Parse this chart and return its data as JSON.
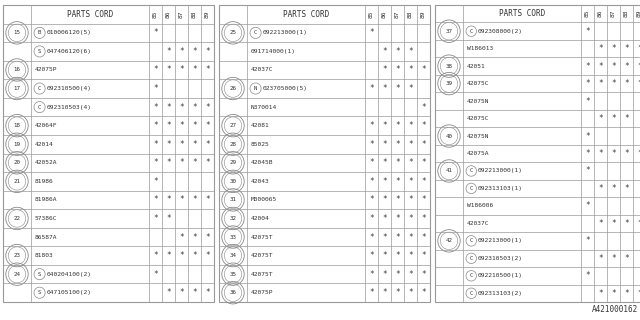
{
  "footer": "A421000162",
  "col_labels": [
    "85",
    "86",
    "87",
    "88",
    "89"
  ],
  "tables": [
    {
      "rows": [
        {
          "ref": null,
          "prefix": "",
          "part": "PARTS CORD",
          "stars": [
            null,
            null,
            null,
            null,
            null
          ],
          "header": true
        },
        {
          "ref": "15",
          "prefix": "B",
          "part": "010006120(5)",
          "stars": [
            "*",
            "",
            "",
            "",
            ""
          ]
        },
        {
          "ref": "15",
          "prefix": "S",
          "part": "047406120(6)",
          "stars": [
            "",
            "*",
            "*",
            "*",
            "*"
          ]
        },
        {
          "ref": "16",
          "prefix": "",
          "part": "42075P",
          "stars": [
            "*",
            "*",
            "*",
            "*",
            "*"
          ]
        },
        {
          "ref": "17",
          "prefix": "C",
          "part": "092310500(4)",
          "stars": [
            "*",
            "",
            "",
            "",
            ""
          ]
        },
        {
          "ref": "17",
          "prefix": "C",
          "part": "092310503(4)",
          "stars": [
            "*",
            "*",
            "*",
            "*",
            "*"
          ]
        },
        {
          "ref": "18",
          "prefix": "",
          "part": "42064F",
          "stars": [
            "*",
            "*",
            "*",
            "*",
            "*"
          ]
        },
        {
          "ref": "19",
          "prefix": "",
          "part": "42014",
          "stars": [
            "*",
            "*",
            "*",
            "*",
            "*"
          ]
        },
        {
          "ref": "20",
          "prefix": "",
          "part": "42052A",
          "stars": [
            "*",
            "*",
            "*",
            "*",
            "*"
          ]
        },
        {
          "ref": "21",
          "prefix": "",
          "part": "81986",
          "stars": [
            "*",
            "",
            "",
            "",
            ""
          ]
        },
        {
          "ref": "21",
          "prefix": "",
          "part": "81986A",
          "stars": [
            "*",
            "*",
            "*",
            "*",
            "*"
          ]
        },
        {
          "ref": "22",
          "prefix": "",
          "part": "57386C",
          "stars": [
            "*",
            "*",
            "",
            "",
            ""
          ]
        },
        {
          "ref": "22",
          "prefix": "",
          "part": "86587A",
          "stars": [
            "",
            "",
            "*",
            "*",
            "*"
          ]
        },
        {
          "ref": "23",
          "prefix": "",
          "part": "81803",
          "stars": [
            "*",
            "*",
            "*",
            "*",
            "*"
          ]
        },
        {
          "ref": "24",
          "prefix": "S",
          "part": "040204100(2)",
          "stars": [
            "*",
            "",
            "",
            "",
            ""
          ]
        },
        {
          "ref": "24",
          "prefix": "S",
          "part": "047105100(2)",
          "stars": [
            "",
            "*",
            "*",
            "*",
            "*"
          ]
        }
      ]
    },
    {
      "rows": [
        {
          "ref": null,
          "prefix": "",
          "part": "PARTS CORD",
          "stars": [
            null,
            null,
            null,
            null,
            null
          ],
          "header": true
        },
        {
          "ref": "25",
          "prefix": "C",
          "part": "092213000(1)",
          "stars": [
            "*",
            "",
            "",
            "",
            ""
          ]
        },
        {
          "ref": "25",
          "prefix": "",
          "part": "091714000(1)",
          "stars": [
            "",
            "*",
            "*",
            "*",
            ""
          ]
        },
        {
          "ref": "25",
          "prefix": "",
          "part": "42037C",
          "stars": [
            "",
            "*",
            "*",
            "*",
            "*"
          ]
        },
        {
          "ref": "26",
          "prefix": "N",
          "part": "023705000(5)",
          "stars": [
            "*",
            "*",
            "*",
            "*",
            ""
          ]
        },
        {
          "ref": "26",
          "prefix": "",
          "part": "N370014",
          "stars": [
            "",
            "",
            "",
            "",
            "*"
          ]
        },
        {
          "ref": "27",
          "prefix": "",
          "part": "42081",
          "stars": [
            "*",
            "*",
            "*",
            "*",
            "*"
          ]
        },
        {
          "ref": "28",
          "prefix": "",
          "part": "85025",
          "stars": [
            "*",
            "*",
            "*",
            "*",
            "*"
          ]
        },
        {
          "ref": "29",
          "prefix": "",
          "part": "42045B",
          "stars": [
            "*",
            "*",
            "*",
            "*",
            "*"
          ]
        },
        {
          "ref": "30",
          "prefix": "",
          "part": "42043",
          "stars": [
            "*",
            "*",
            "*",
            "*",
            "*"
          ]
        },
        {
          "ref": "31",
          "prefix": "",
          "part": "M000065",
          "stars": [
            "*",
            "*",
            "*",
            "*",
            "*"
          ]
        },
        {
          "ref": "32",
          "prefix": "",
          "part": "42004",
          "stars": [
            "*",
            "*",
            "*",
            "*",
            "*"
          ]
        },
        {
          "ref": "33",
          "prefix": "",
          "part": "42075T",
          "stars": [
            "*",
            "*",
            "*",
            "*",
            "*"
          ]
        },
        {
          "ref": "34",
          "prefix": "",
          "part": "42075T",
          "stars": [
            "*",
            "*",
            "*",
            "*",
            "*"
          ]
        },
        {
          "ref": "35",
          "prefix": "",
          "part": "42075T",
          "stars": [
            "*",
            "*",
            "*",
            "*",
            "*"
          ]
        },
        {
          "ref": "36",
          "prefix": "",
          "part": "42075P",
          "stars": [
            "*",
            "*",
            "*",
            "*",
            "*"
          ]
        }
      ]
    },
    {
      "rows": [
        {
          "ref": null,
          "prefix": "",
          "part": "PARTS CORD",
          "stars": [
            null,
            null,
            null,
            null,
            null
          ],
          "header": true
        },
        {
          "ref": "37",
          "prefix": "C",
          "part": "092308000(2)",
          "stars": [
            "*",
            "",
            "",
            "",
            ""
          ]
        },
        {
          "ref": "37",
          "prefix": "",
          "part": "W186013",
          "stars": [
            "",
            "*",
            "*",
            "*",
            "*"
          ]
        },
        {
          "ref": "38",
          "prefix": "",
          "part": "42051",
          "stars": [
            "*",
            "*",
            "*",
            "*",
            "*"
          ]
        },
        {
          "ref": "39",
          "prefix": "",
          "part": "42075C",
          "stars": [
            "*",
            "*",
            "*",
            "*",
            "*"
          ]
        },
        {
          "ref": "39",
          "prefix": "",
          "part": "42075N",
          "stars": [
            "*",
            "",
            "",
            "",
            ""
          ]
        },
        {
          "ref": "39",
          "prefix": "",
          "part": "42075C",
          "stars": [
            "",
            "*",
            "*",
            "*",
            ""
          ]
        },
        {
          "ref": "40",
          "prefix": "",
          "part": "42075N",
          "stars": [
            "*",
            "",
            "",
            "",
            ""
          ]
        },
        {
          "ref": "40",
          "prefix": "",
          "part": "42075A",
          "stars": [
            "*",
            "*",
            "*",
            "*",
            "*"
          ]
        },
        {
          "ref": "41",
          "prefix": "C",
          "part": "092213000(1)",
          "stars": [
            "*",
            "",
            "",
            "",
            ""
          ]
        },
        {
          "ref": "41",
          "prefix": "C",
          "part": "092313103(1)",
          "stars": [
            "",
            "*",
            "*",
            "*",
            ""
          ]
        },
        {
          "ref": "41",
          "prefix": "",
          "part": "W186006",
          "stars": [
            "*",
            "",
            "",
            "",
            ""
          ]
        },
        {
          "ref": "41",
          "prefix": "",
          "part": "42037C",
          "stars": [
            "",
            "*",
            "*",
            "*",
            "*"
          ]
        },
        {
          "ref": "42",
          "prefix": "C",
          "part": "092213000(1)",
          "stars": [
            "*",
            "",
            "",
            "",
            ""
          ]
        },
        {
          "ref": "42",
          "prefix": "C",
          "part": "092310503(2)",
          "stars": [
            "",
            "*",
            "*",
            "*",
            ""
          ]
        },
        {
          "ref": "42",
          "prefix": "C",
          "part": "092210500(1)",
          "stars": [
            "*",
            "",
            "",
            "",
            ""
          ]
        },
        {
          "ref": "42",
          "prefix": "C",
          "part": "092313103(2)",
          "stars": [
            "",
            "*",
            "*",
            "*",
            "*"
          ]
        }
      ]
    }
  ]
}
